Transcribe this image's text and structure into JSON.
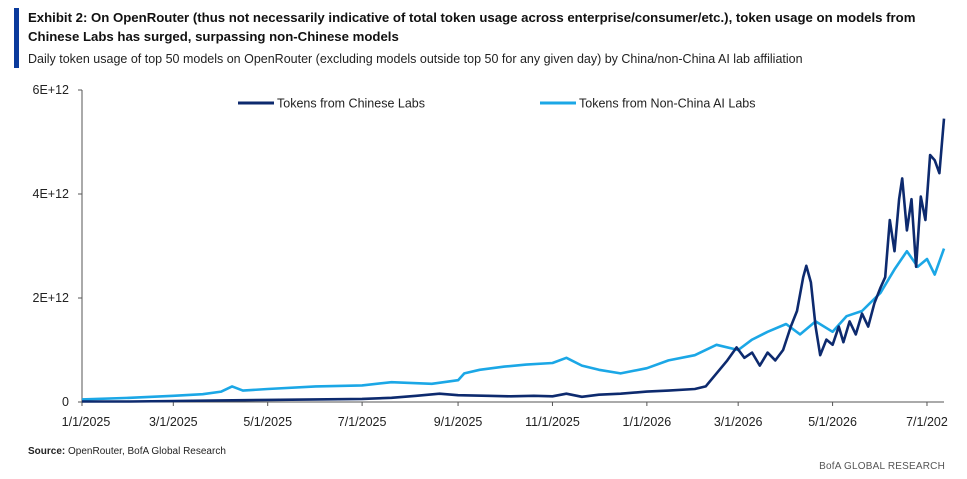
{
  "header": {
    "title": "Exhibit 2: On OpenRouter (thus not necessarily indicative of total token usage across enterprise/consumer/etc.), token usage on models from Chinese Labs has surged, surpassing non-Chinese models",
    "subtitle": "Daily token usage of top 50 models on OpenRouter (excluding models outside top 50 for any given day) by China/non-China AI lab affiliation",
    "accent_color": "#0a3a9c"
  },
  "footer": {
    "source_label": "Source:",
    "source_text": " OpenRouter, BofA Global Research",
    "brand": "BofA GLOBAL RESEARCH"
  },
  "chart_data": {
    "type": "line",
    "title": "",
    "xlabel": "",
    "ylabel": "",
    "x_tick_labels": [
      "1/1/2025",
      "3/1/2025",
      "5/1/2025",
      "7/1/2025",
      "9/1/2025",
      "11/1/2025",
      "1/1/2026",
      "3/1/2026",
      "5/1/2026",
      "7/1/202"
    ],
    "y_tick_labels": [
      "0",
      "2E+12",
      "4E+12",
      "6E+12"
    ],
    "ylim": [
      0,
      6000000000000.0
    ],
    "xlim": [
      "2025-01-01",
      "2026-07-12"
    ],
    "grid": false,
    "legend_position": "top",
    "series": [
      {
        "name": "Tokens from Chinese Labs",
        "color": "#0d2a6e",
        "points": [
          [
            "2025-01-01",
            10000000000.0
          ],
          [
            "2025-02-01",
            10000000000.0
          ],
          [
            "2025-03-01",
            20000000000.0
          ],
          [
            "2025-04-01",
            30000000000.0
          ],
          [
            "2025-05-01",
            40000000000.0
          ],
          [
            "2025-06-01",
            50000000000.0
          ],
          [
            "2025-07-01",
            60000000000.0
          ],
          [
            "2025-07-20",
            80000000000.0
          ],
          [
            "2025-08-05",
            120000000000.0
          ],
          [
            "2025-08-20",
            160000000000.0
          ],
          [
            "2025-09-01",
            130000000000.0
          ],
          [
            "2025-09-20",
            120000000000.0
          ],
          [
            "2025-10-05",
            110000000000.0
          ],
          [
            "2025-10-20",
            120000000000.0
          ],
          [
            "2025-11-01",
            110000000000.0
          ],
          [
            "2025-11-10",
            160000000000.0
          ],
          [
            "2025-11-20",
            100000000000.0
          ],
          [
            "2025-12-01",
            140000000000.0
          ],
          [
            "2025-12-15",
            160000000000.0
          ],
          [
            "2026-01-01",
            200000000000.0
          ],
          [
            "2026-01-15",
            220000000000.0
          ],
          [
            "2026-02-01",
            250000000000.0
          ],
          [
            "2026-02-08",
            300000000000.0
          ],
          [
            "2026-02-15",
            550000000000.0
          ],
          [
            "2026-02-22",
            800000000000.0
          ],
          [
            "2026-02-28",
            1050000000000.0
          ],
          [
            "2026-03-05",
            850000000000.0
          ],
          [
            "2026-03-10",
            950000000000.0
          ],
          [
            "2026-03-15",
            700000000000.0
          ],
          [
            "2026-03-20",
            950000000000.0
          ],
          [
            "2026-03-25",
            800000000000.0
          ],
          [
            "2026-03-30",
            1000000000000.0
          ],
          [
            "2026-04-04",
            1450000000000.0
          ],
          [
            "2026-04-08",
            1750000000000.0
          ],
          [
            "2026-04-12",
            2400000000000.0
          ],
          [
            "2026-04-14",
            2620000000000.0
          ],
          [
            "2026-04-17",
            2300000000000.0
          ],
          [
            "2026-04-20",
            1450000000000.0
          ],
          [
            "2026-04-23",
            900000000000.0
          ],
          [
            "2026-04-27",
            1200000000000.0
          ],
          [
            "2026-05-01",
            1100000000000.0
          ],
          [
            "2026-05-05",
            1450000000000.0
          ],
          [
            "2026-05-08",
            1150000000000.0
          ],
          [
            "2026-05-12",
            1550000000000.0
          ],
          [
            "2026-05-16",
            1300000000000.0
          ],
          [
            "2026-05-20",
            1700000000000.0
          ],
          [
            "2026-05-24",
            1450000000000.0
          ],
          [
            "2026-05-28",
            1900000000000.0
          ],
          [
            "2026-06-01",
            2200000000000.0
          ],
          [
            "2026-06-04",
            2400000000000.0
          ],
          [
            "2026-06-07",
            3500000000000.0
          ],
          [
            "2026-06-10",
            2900000000000.0
          ],
          [
            "2026-06-13",
            3900000000000.0
          ],
          [
            "2026-06-15",
            4300000000000.0
          ],
          [
            "2026-06-18",
            3300000000000.0
          ],
          [
            "2026-06-21",
            3900000000000.0
          ],
          [
            "2026-06-24",
            2600000000000.0
          ],
          [
            "2026-06-27",
            3950000000000.0
          ],
          [
            "2026-06-30",
            3500000000000.0
          ],
          [
            "2026-07-03",
            4750000000000.0
          ],
          [
            "2026-07-06",
            4650000000000.0
          ],
          [
            "2026-07-09",
            4400000000000.0
          ],
          [
            "2026-07-12",
            5450000000000.0
          ]
        ]
      },
      {
        "name": "Tokens from Non-China AI Labs",
        "color": "#1ba7e6",
        "points": [
          [
            "2025-01-01",
            50000000000.0
          ],
          [
            "2025-02-01",
            80000000000.0
          ],
          [
            "2025-03-01",
            120000000000.0
          ],
          [
            "2025-03-20",
            150000000000.0
          ],
          [
            "2025-04-01",
            200000000000.0
          ],
          [
            "2025-04-08",
            300000000000.0
          ],
          [
            "2025-04-15",
            220000000000.0
          ],
          [
            "2025-05-01",
            250000000000.0
          ],
          [
            "2025-06-01",
            300000000000.0
          ],
          [
            "2025-07-01",
            320000000000.0
          ],
          [
            "2025-07-20",
            380000000000.0
          ],
          [
            "2025-08-15",
            350000000000.0
          ],
          [
            "2025-09-01",
            420000000000.0
          ],
          [
            "2025-09-05",
            550000000000.0
          ],
          [
            "2025-09-15",
            620000000000.0
          ],
          [
            "2025-10-01",
            680000000000.0
          ],
          [
            "2025-10-15",
            720000000000.0
          ],
          [
            "2025-11-01",
            750000000000.0
          ],
          [
            "2025-11-10",
            850000000000.0
          ],
          [
            "2025-11-20",
            700000000000.0
          ],
          [
            "2025-12-01",
            620000000000.0
          ],
          [
            "2025-12-15",
            550000000000.0
          ],
          [
            "2026-01-01",
            650000000000.0
          ],
          [
            "2026-01-15",
            800000000000.0
          ],
          [
            "2026-02-01",
            900000000000.0
          ],
          [
            "2026-02-15",
            1100000000000.0
          ],
          [
            "2026-03-01",
            1000000000000.0
          ],
          [
            "2026-03-10",
            1200000000000.0
          ],
          [
            "2026-03-20",
            1350000000000.0
          ],
          [
            "2026-04-01",
            1500000000000.0
          ],
          [
            "2026-04-10",
            1300000000000.0
          ],
          [
            "2026-04-20",
            1550000000000.0
          ],
          [
            "2026-05-01",
            1350000000000.0
          ],
          [
            "2026-05-10",
            1650000000000.0
          ],
          [
            "2026-05-20",
            1750000000000.0
          ],
          [
            "2026-06-01",
            2100000000000.0
          ],
          [
            "2026-06-10",
            2550000000000.0
          ],
          [
            "2026-06-18",
            2900000000000.0
          ],
          [
            "2026-06-25",
            2600000000000.0
          ],
          [
            "2026-07-01",
            2750000000000.0
          ],
          [
            "2026-07-06",
            2450000000000.0
          ],
          [
            "2026-07-12",
            2950000000000.0
          ]
        ]
      }
    ]
  }
}
